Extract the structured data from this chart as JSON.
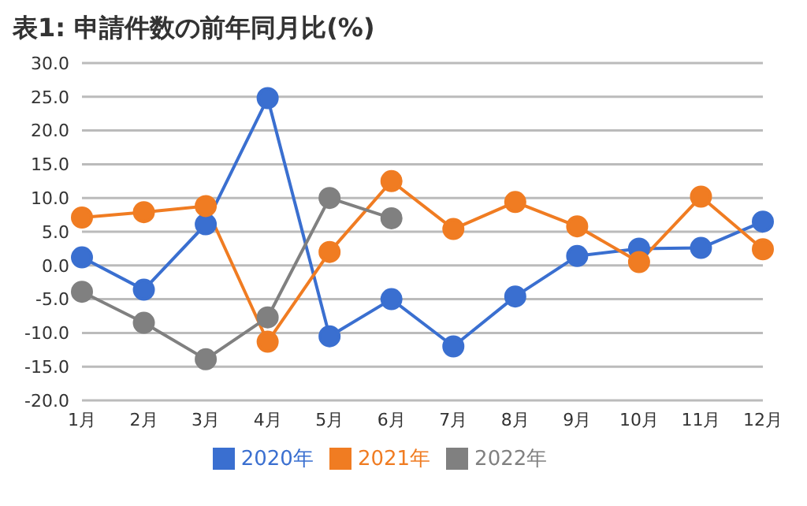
{
  "chart_data": {
    "type": "line",
    "title": "表1: 申請件数の前年同月比(%)",
    "categories": [
      "1月",
      "2月",
      "3月",
      "4月",
      "5月",
      "6月",
      "7月",
      "8月",
      "9月",
      "10月",
      "11月",
      "12月"
    ],
    "series": [
      {
        "name": "2020年",
        "color": "#3a6fd0",
        "values": [
          1.2,
          -3.6,
          6.1,
          24.8,
          -10.5,
          -5.0,
          -12.0,
          -4.6,
          1.4,
          2.5,
          2.6,
          6.5
        ]
      },
      {
        "name": "2021年",
        "color": "#f07c22",
        "values": [
          7.1,
          7.9,
          8.8,
          -11.3,
          2.0,
          12.5,
          5.4,
          9.4,
          5.8,
          0.5,
          10.2,
          2.4
        ]
      },
      {
        "name": "2022年",
        "color": "#808080",
        "values": [
          -3.9,
          -8.5,
          -13.9,
          -7.7,
          10.0,
          7.0,
          null,
          null,
          null,
          null,
          null,
          null
        ]
      }
    ],
    "ylim": [
      -20,
      30
    ],
    "yticks": [
      {
        "value": -20,
        "label": "-20.0"
      },
      {
        "value": -15,
        "label": "-15.0"
      },
      {
        "value": -10,
        "label": "-10.0"
      },
      {
        "value": -5,
        "label": "-5.0"
      },
      {
        "value": 0,
        "label": "0.0"
      },
      {
        "value": 5,
        "label": "5.0"
      },
      {
        "value": 10,
        "label": "10.0"
      },
      {
        "value": 15,
        "label": "15.0"
      },
      {
        "value": 20,
        "label": "20.0"
      },
      {
        "value": 25,
        "label": "25.0"
      },
      {
        "value": 30,
        "label": "30.0"
      }
    ],
    "grid": "y",
    "legend": "bottom",
    "marker": "circle",
    "line_style": "solid"
  }
}
